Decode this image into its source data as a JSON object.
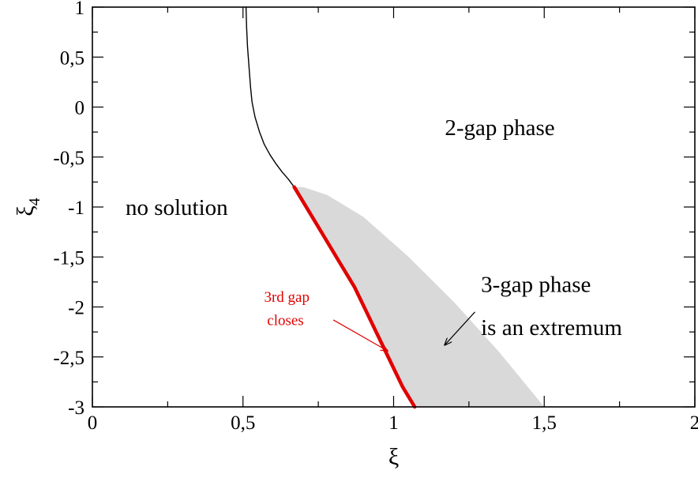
{
  "chart_data": {
    "type": "line",
    "xlabel": "ξ",
    "ylabel": "ξ",
    "ylabel_sub": "4",
    "xlim": [
      0,
      2
    ],
    "ylim": [
      -3,
      1
    ],
    "grid": false,
    "x_ticks": [
      0,
      0.5,
      1,
      1.5,
      2
    ],
    "x_tick_labels": [
      "0",
      "0,5",
      "1",
      "1,5",
      "2"
    ],
    "y_ticks": [
      1,
      0.5,
      0,
      -0.5,
      -1,
      -1.5,
      -2,
      -2.5,
      -3
    ],
    "y_tick_labels": [
      "1",
      "0,5",
      "0",
      "-0,5",
      "-1",
      "-1,5",
      "-2",
      "-2,5",
      "-3"
    ],
    "series": [
      {
        "color": "#000000",
        "x": [
          0.51,
          0.512,
          0.515,
          0.52,
          0.525,
          0.53,
          0.54,
          0.555,
          0.57,
          0.59,
          0.61,
          0.63,
          0.65,
          0.67
        ],
        "y": [
          1.0,
          0.8,
          0.6,
          0.4,
          0.2,
          0.05,
          -0.1,
          -0.25,
          -0.37,
          -0.48,
          -0.57,
          -0.65,
          -0.72,
          -0.8
        ]
      },
      {
        "color": "#e00000",
        "x": [
          0.67,
          0.72,
          0.77,
          0.82,
          0.87,
          0.91,
          0.95,
          0.99,
          1.03,
          1.07
        ],
        "y": [
          -0.8,
          -1.05,
          -1.3,
          -1.55,
          -1.8,
          -2.05,
          -2.3,
          -2.55,
          -2.8,
          -3.0
        ]
      }
    ],
    "shaded_region": {
      "color": "#d9d9d9",
      "x": [
        0.67,
        0.72,
        0.77,
        0.82,
        0.87,
        0.91,
        0.95,
        0.99,
        1.03,
        1.07,
        1.5,
        1.35,
        1.2,
        1.05,
        0.9,
        0.78,
        0.7
      ],
      "y": [
        -0.8,
        -1.05,
        -1.3,
        -1.55,
        -1.8,
        -2.05,
        -2.3,
        -2.55,
        -2.8,
        -3.0,
        -3.0,
        -2.45,
        -1.95,
        -1.5,
        -1.1,
        -0.88,
        -0.8
      ]
    },
    "annotations": [
      {
        "id": "ann-2gap",
        "text": "2-gap phase",
        "x": 1.17,
        "y": -0.28
      },
      {
        "id": "ann-nosolution",
        "text": "no solution",
        "x": 0.11,
        "y": -1.08
      },
      {
        "id": "ann-3gap-1",
        "text": "3-gap phase",
        "x": 1.29,
        "y": -1.85
      },
      {
        "id": "ann-3gap-2",
        "text": "is an extremum",
        "x": 1.29,
        "y": -2.28
      },
      {
        "id": "ann-3rd-1",
        "text": "3rd gap",
        "x": 0.57,
        "y": -1.95,
        "color": "#e00000"
      },
      {
        "id": "ann-3rd-2",
        "text": "closes",
        "x": 0.58,
        "y": -2.18,
        "color": "#e00000"
      }
    ],
    "arrows": [
      {
        "id": "arrow-3rd",
        "color": "#e00000",
        "from": [
          0.8,
          -2.13
        ],
        "to": [
          0.98,
          -2.44
        ]
      },
      {
        "id": "arrow-3gap",
        "color": "#000000",
        "from": [
          1.27,
          -2.05
        ],
        "to": [
          1.17,
          -2.38
        ]
      }
    ]
  }
}
